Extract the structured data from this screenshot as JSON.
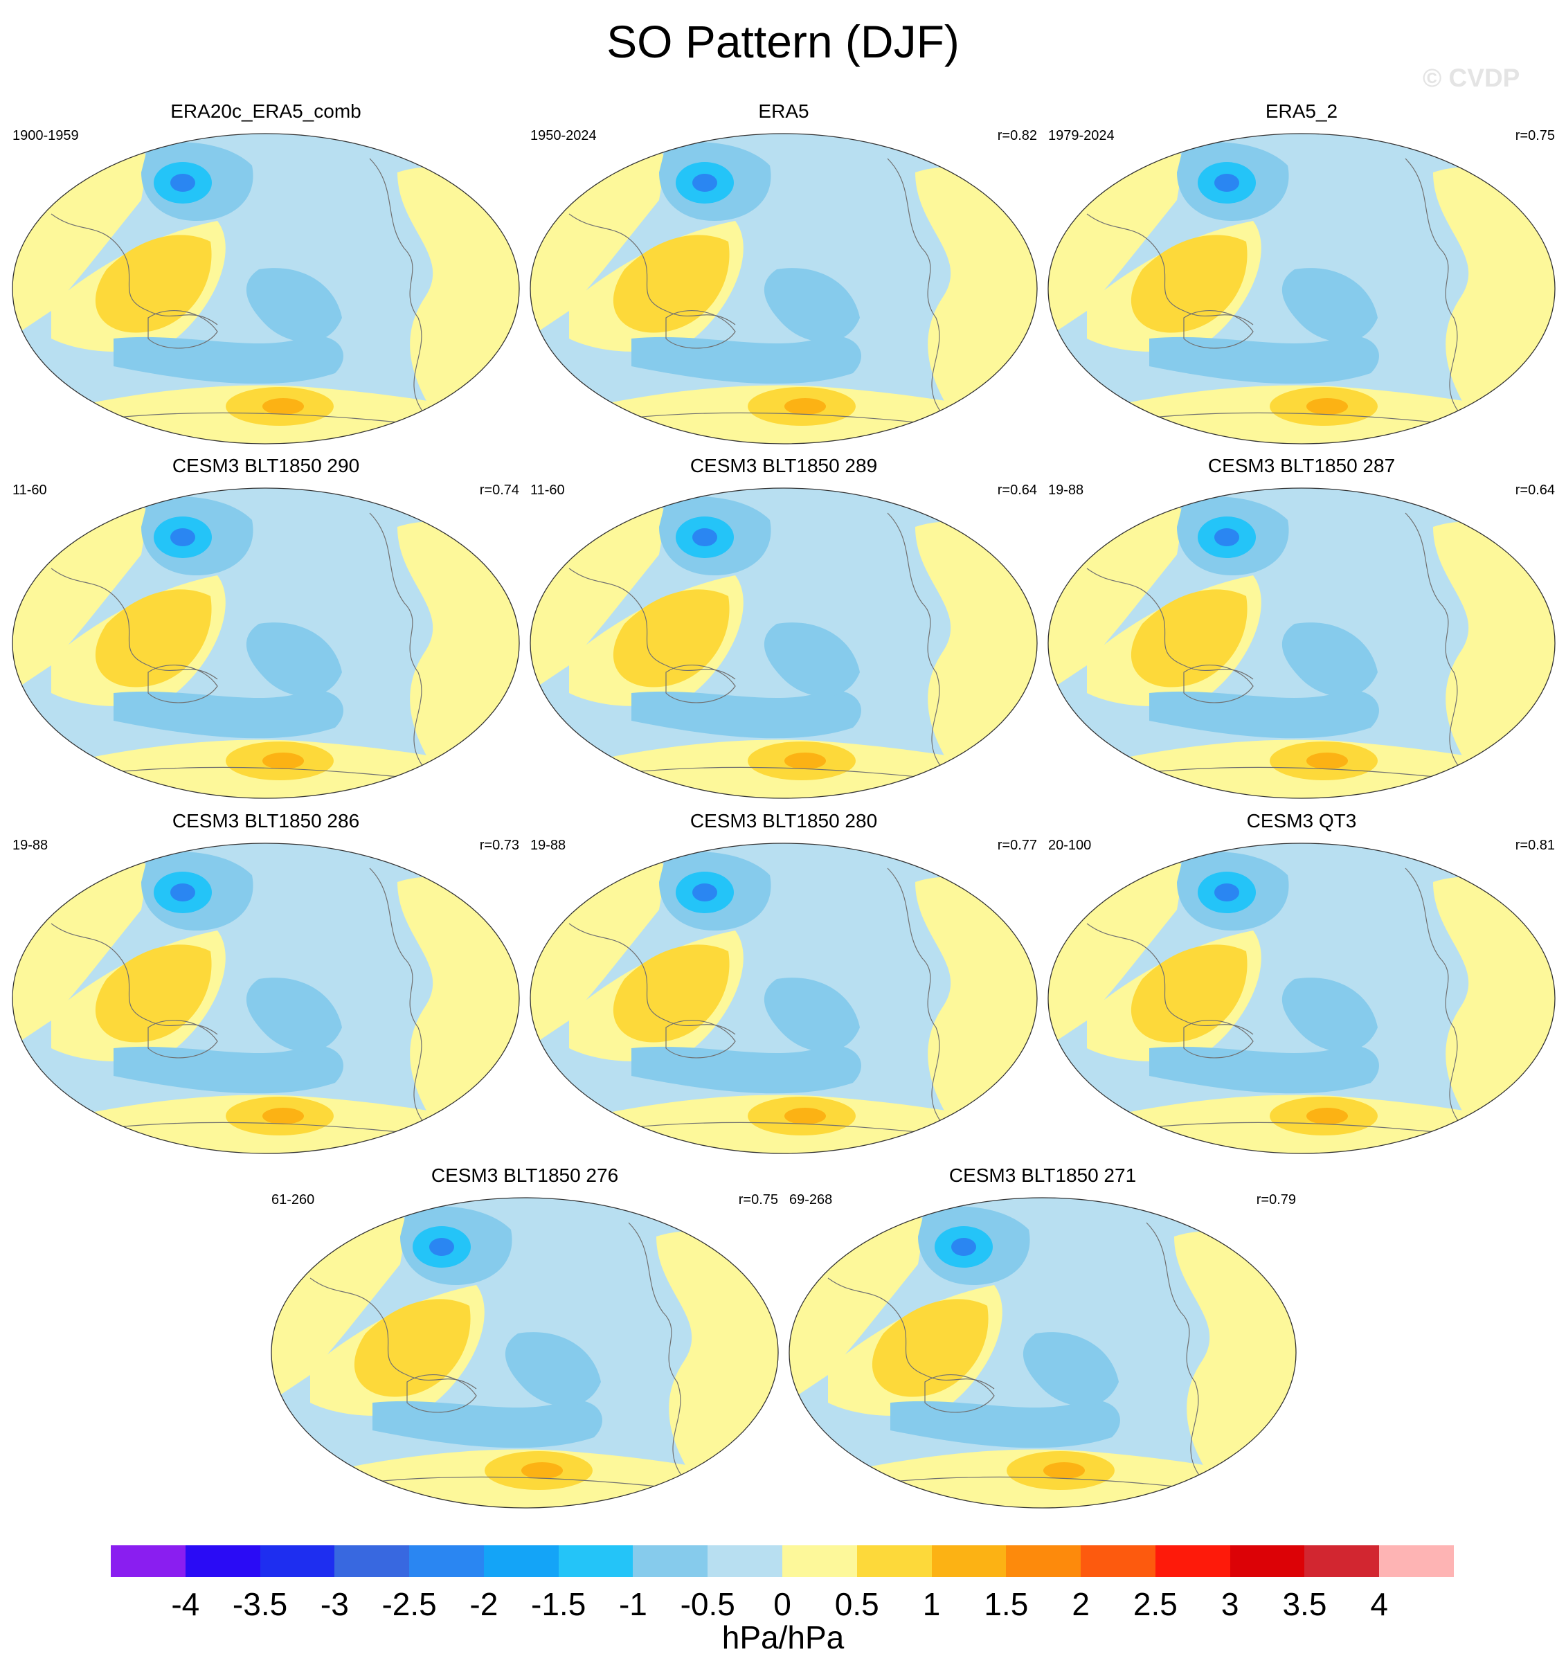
{
  "title": "SO Pattern (DJF)",
  "watermark": "© CVDP",
  "panels": [
    {
      "name": "ERA20c_ERA5_comb",
      "period": "1900-1959",
      "corr": ""
    },
    {
      "name": "ERA5",
      "period": "1950-2024",
      "corr": "r=0.82"
    },
    {
      "name": "ERA5_2",
      "period": "1979-2024",
      "corr": "r=0.75"
    },
    {
      "name": "CESM3 BLT1850 290",
      "period": "11-60",
      "corr": "r=0.74"
    },
    {
      "name": "CESM3 BLT1850 289",
      "period": "11-60",
      "corr": "r=0.64"
    },
    {
      "name": "CESM3 BLT1850 287",
      "period": "19-88",
      "corr": "r=0.64"
    },
    {
      "name": "CESM3 BLT1850 286",
      "period": "19-88",
      "corr": "r=0.73"
    },
    {
      "name": "CESM3 BLT1850 280",
      "period": "19-88",
      "corr": "r=0.77"
    },
    {
      "name": "CESM3 QT3",
      "period": "20-100",
      "corr": "r=0.81"
    },
    {
      "name": "CESM3 BLT1850 276",
      "period": "61-260",
      "corr": "r=0.75"
    },
    {
      "name": "CESM3 BLT1850 271",
      "period": "69-268",
      "corr": "r=0.79"
    }
  ],
  "colorbar": {
    "labels": [
      "-4",
      "-3.5",
      "-3",
      "-2.5",
      "-2",
      "-1.5",
      "-1",
      "-0.5",
      "0",
      "0.5",
      "1",
      "1.5",
      "2",
      "2.5",
      "3",
      "3.5",
      "4"
    ],
    "colors": [
      "#8a1ef0",
      "#2a0bf5",
      "#1e2ef0",
      "#3868e0",
      "#2a86f2",
      "#14a4f7",
      "#24c4f8",
      "#86cbec",
      "#b8dff1",
      "#fdf89a",
      "#fdd93a",
      "#fcb214",
      "#fd8a0c",
      "#fd5a0e",
      "#fe1a0a",
      "#dc0206",
      "#d22630",
      "#feb4b4"
    ],
    "units": "hPa/hPa"
  },
  "colors": {
    "ocean_neg": "#b8dff1",
    "neg1": "#86cbec",
    "neg2": "#24c4f8",
    "neg3": "#2a86f2",
    "pos1": "#fdf89a",
    "pos2": "#fdd93a",
    "pos3": "#fcb214",
    "coast": "#707070"
  }
}
